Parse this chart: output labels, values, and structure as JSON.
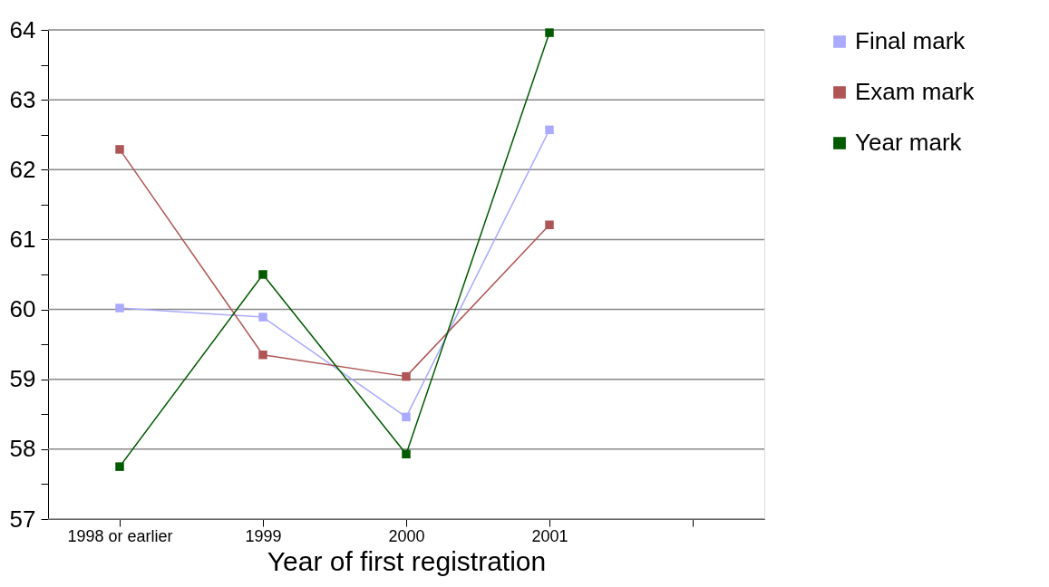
{
  "chart_data": {
    "type": "line",
    "xlabel": "Year of first registration",
    "categories": [
      "1998 or earlier",
      "1999",
      "2000",
      "2001",
      null
    ],
    "series": [
      {
        "name": "Final mark",
        "color": "#aaaaff",
        "values": [
          60.02,
          59.89,
          58.46,
          62.57,
          null
        ]
      },
      {
        "name": "Exam mark",
        "color": "#b05555",
        "values": [
          62.29,
          59.35,
          59.04,
          61.21,
          null
        ]
      },
      {
        "name": "Year mark",
        "color": "#005a00",
        "values": [
          57.75,
          60.5,
          57.93,
          63.96,
          null
        ]
      }
    ],
    "ylim": [
      57,
      64
    ],
    "yticks": [
      57,
      {
        "value": 57.5,
        "label": null
      },
      58,
      {
        "value": 58.5,
        "label": null
      },
      59,
      {
        "value": 59.5,
        "label": null
      },
      60,
      {
        "value": 60.5,
        "label": null
      },
      61,
      {
        "value": 61.5,
        "label": null
      },
      62,
      {
        "value": 62.5,
        "label": null
      },
      63,
      {
        "value": 63.5,
        "label": null
      },
      64
    ],
    "grid": "y",
    "legend": "right",
    "marker": "square",
    "line_style": "solid"
  }
}
